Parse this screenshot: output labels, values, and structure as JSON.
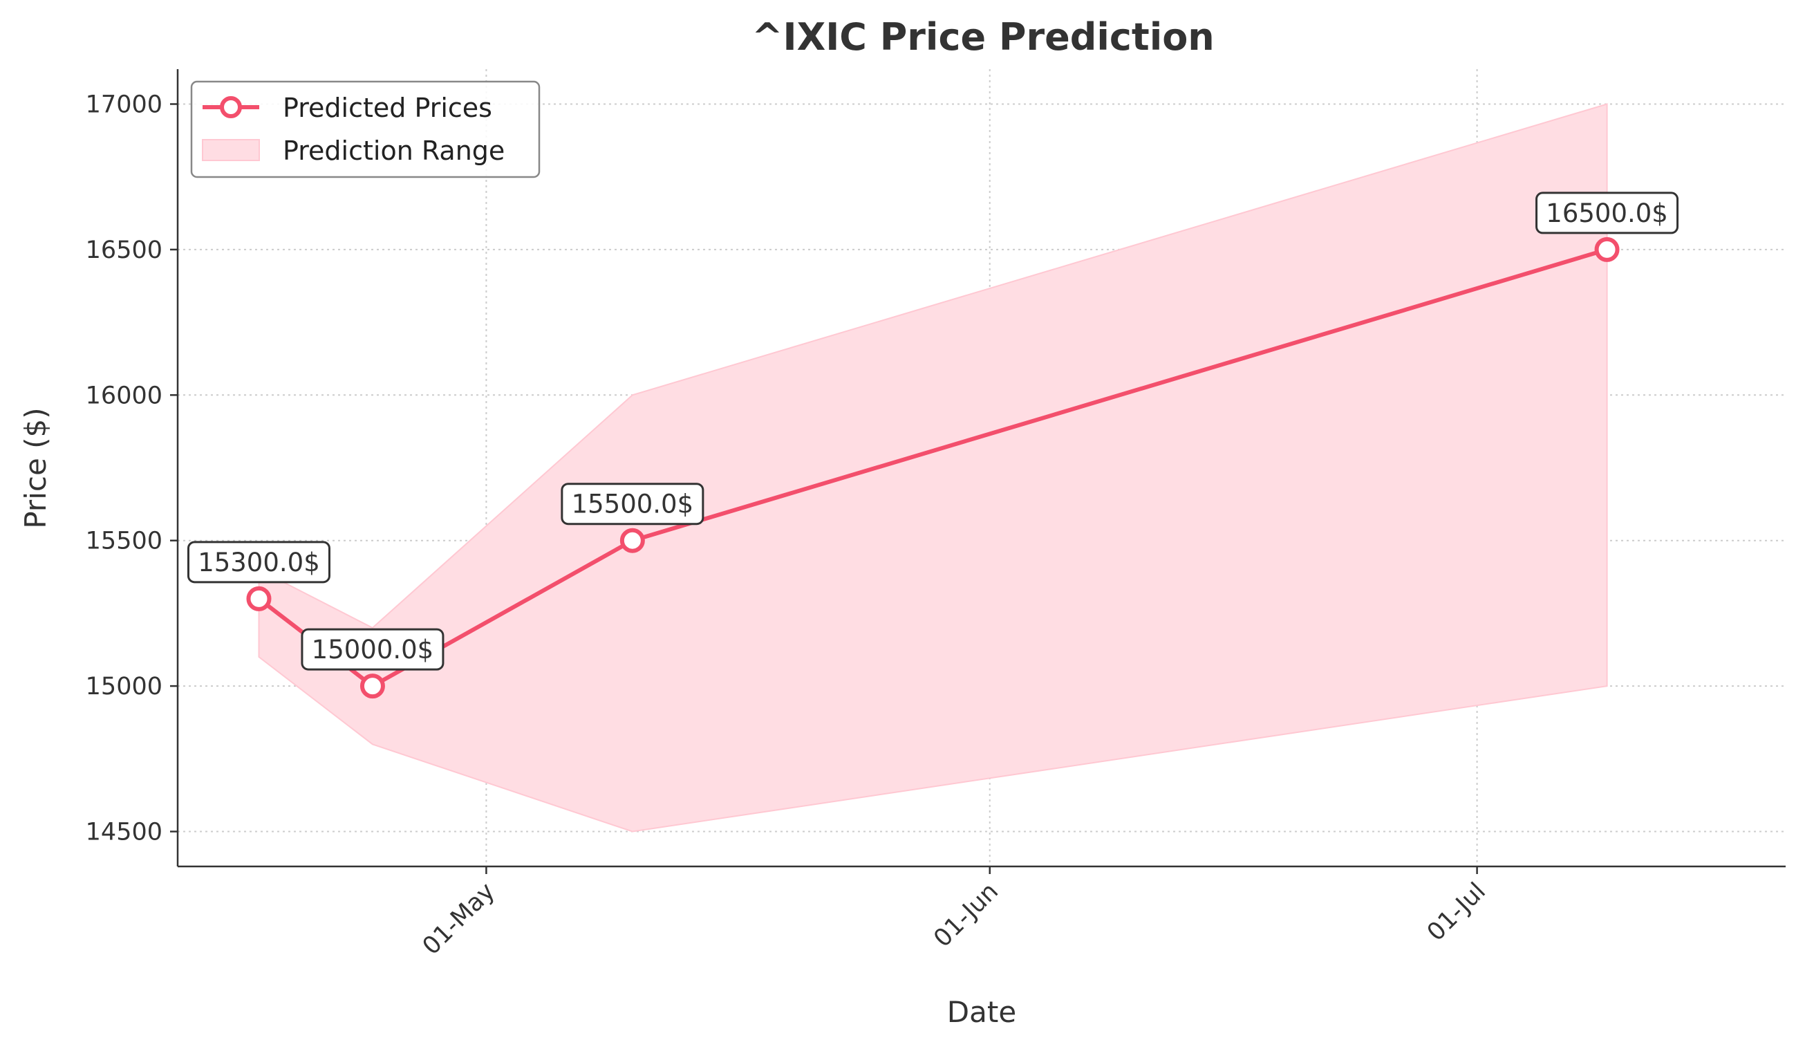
{
  "chart_data": {
    "type": "line",
    "title": "^IXIC Price Prediction",
    "xlabel": "Date",
    "ylabel": "Price ($)",
    "x": [
      "2023-04-17",
      "2023-04-24",
      "2023-05-10",
      "2023-07-09"
    ],
    "series": [
      {
        "name": "Predicted Prices",
        "values": [
          15300.0,
          15000.0,
          15500.0,
          16500.0
        ],
        "color": "#f34f6c",
        "marker": "circle"
      }
    ],
    "range": {
      "name": "Prediction Range",
      "lower": [
        15100,
        14800,
        14500,
        15000
      ],
      "upper": [
        15400,
        15200,
        16000,
        17000
      ],
      "color": "#ffdde3"
    },
    "annotations": [
      "15300.0$",
      "15000.0$",
      "15500.0$",
      "16500.0$"
    ],
    "x_ticks": [
      {
        "date": "2023-05-01",
        "label": "01-May"
      },
      {
        "date": "2023-06-01",
        "label": "01-Jun"
      },
      {
        "date": "2023-07-01",
        "label": "01-Jul"
      }
    ],
    "y_ticks": [
      14500,
      15000,
      15500,
      16000,
      16500,
      17000
    ],
    "xlim": [
      "2023-04-12",
      "2023-07-20"
    ],
    "ylim": [
      14380,
      17120
    ],
    "grid": true,
    "legend": "top-left"
  }
}
